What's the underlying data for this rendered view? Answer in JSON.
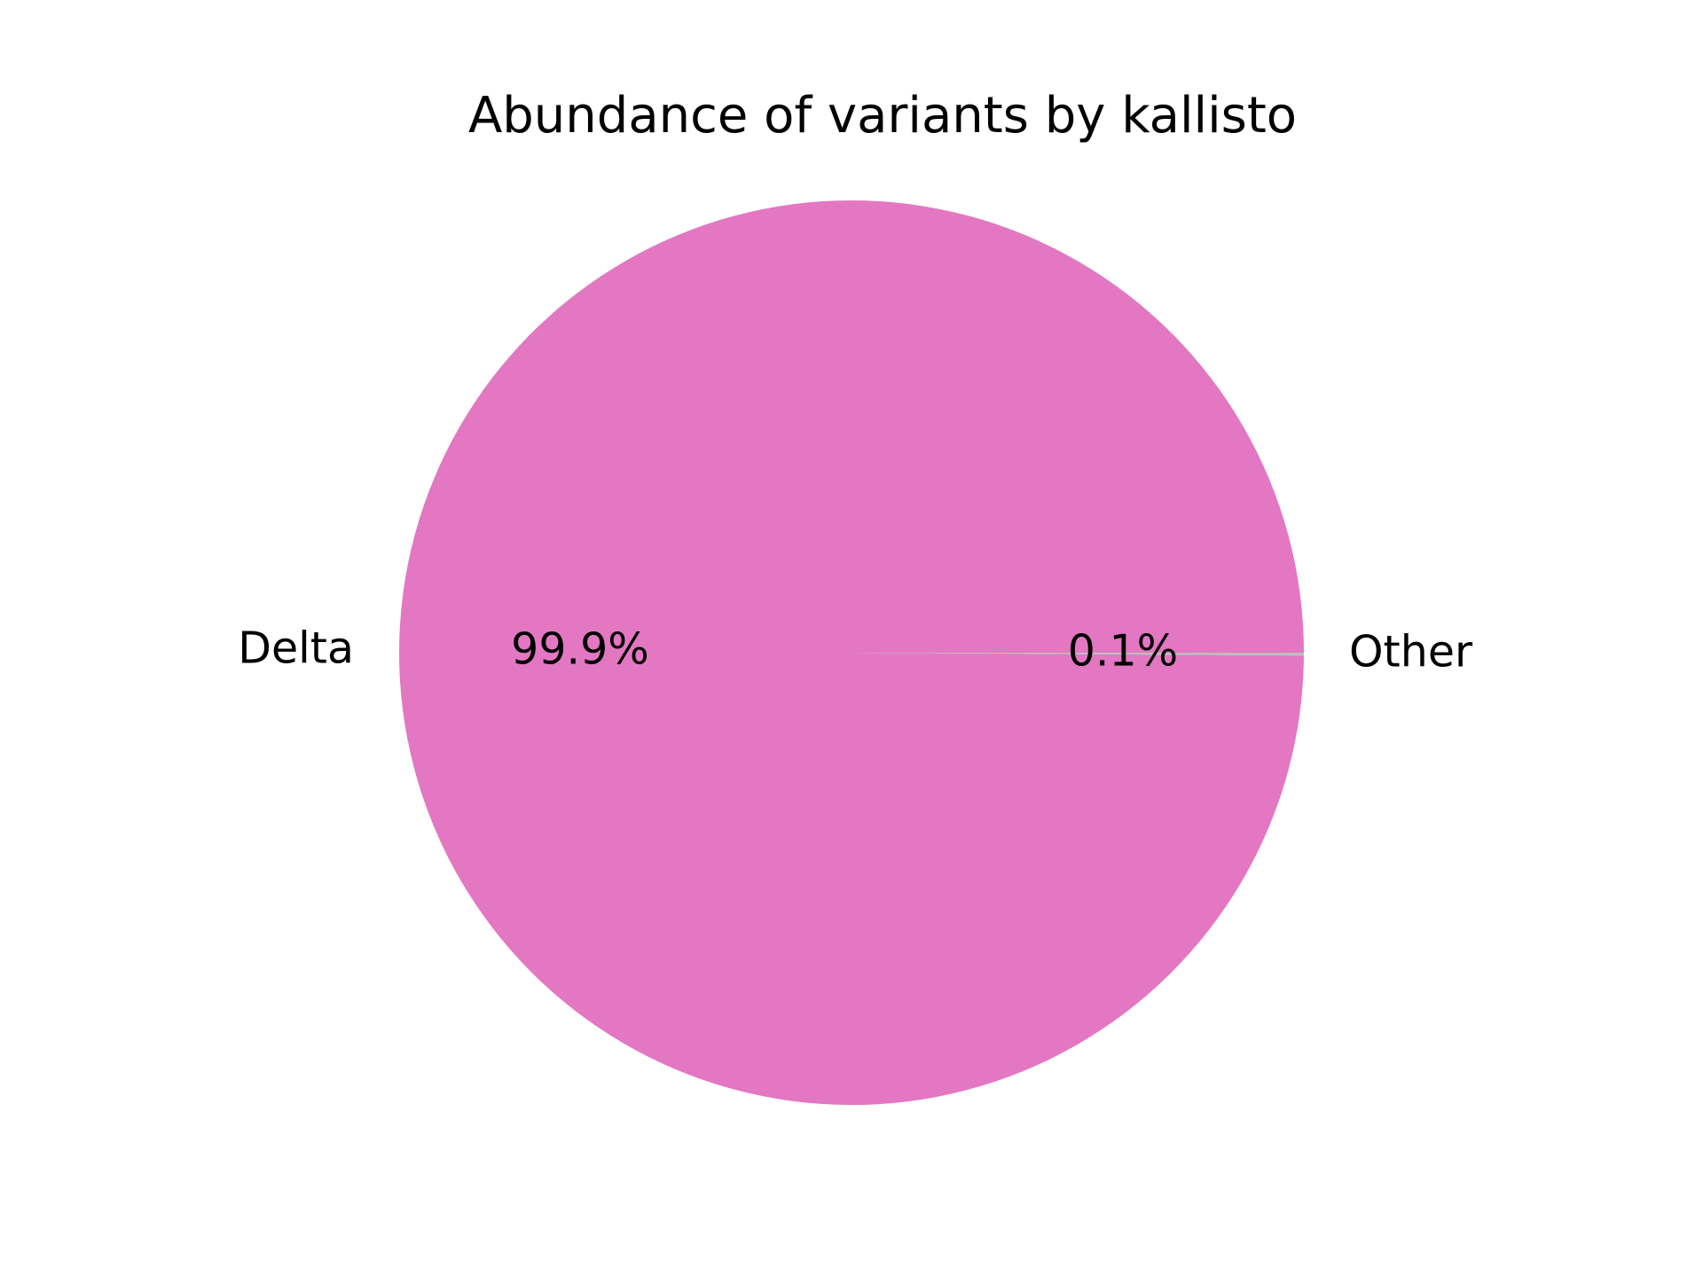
{
  "chart_data": {
    "type": "pie",
    "title": "Abundance of variants by kallisto",
    "labels": [
      "Delta",
      "Other"
    ],
    "values": [
      99.9,
      0.1
    ],
    "autopct_labels": [
      "99.9%",
      "0.1%"
    ],
    "colors": [
      "#e377c2",
      "#bdbdbd"
    ]
  }
}
